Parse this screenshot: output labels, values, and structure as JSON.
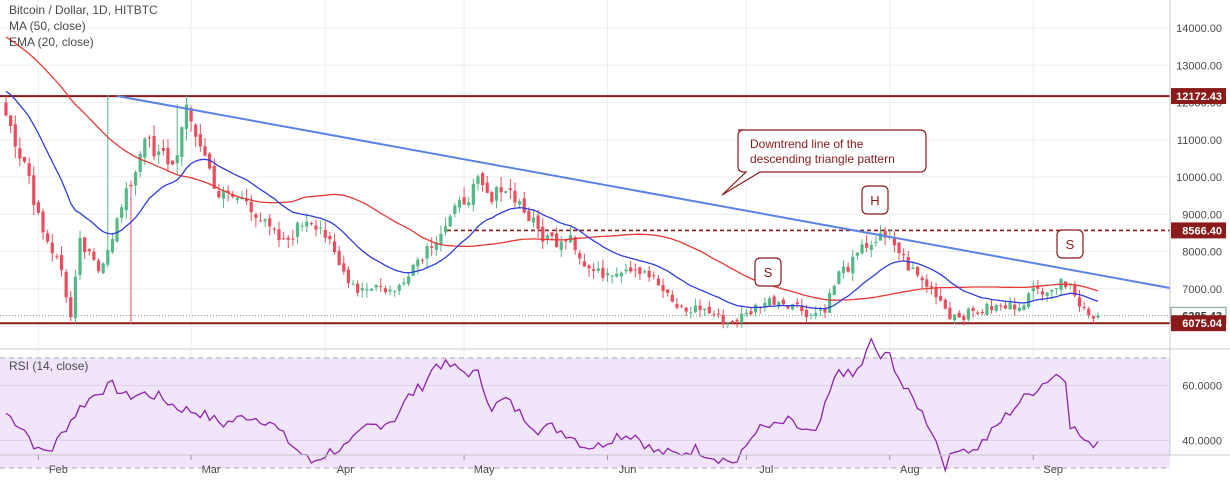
{
  "header": {
    "title": "Bitcoin / Dollar, 1D, HITBTC",
    "indicator_ma": "MA (50, close)",
    "indicator_ema": "EMA (20, close)",
    "rsi_label": "RSI (14, close)"
  },
  "annotations": {
    "callout_line1": "Downtrend line of the",
    "callout_line2": "descending triangle pattern",
    "head": "H",
    "left_shoulder": "S",
    "right_shoulder": "S"
  },
  "colors": {
    "up": "#53b987",
    "down": "#eb4d5c",
    "ma50": "#e53935",
    "ema20": "#2e3ddc",
    "trendline": "#5b82e8",
    "level": "#8b1a1a",
    "rsi": "#8e24aa",
    "rsi_band": "#ecdcfb"
  },
  "chart_data": [
    {
      "type": "candlestick",
      "title": "Bitcoin / Dollar, 1D, HITBTC",
      "x_ticks": [
        "Feb",
        "Mar",
        "Apr",
        "May",
        "Jun",
        "Jul",
        "Aug",
        "Sep"
      ],
      "y_ticks": [
        "6000.00",
        "7000.00",
        "8000.00",
        "9000.00",
        "10000.00",
        "11000.00",
        "12000.00",
        "13000.00",
        "14000.00"
      ],
      "ylim": [
        5700,
        14600
      ],
      "price_labels": [
        "12172.43",
        "8566.40",
        "6285.43",
        "6075.04"
      ],
      "horizontal_levels": [
        12172.43,
        8566.4,
        6075.04
      ],
      "current_price": 6285.43,
      "series": [
        {
          "name": "MA (50, close)",
          "type": "line"
        },
        {
          "name": "EMA (20, close)",
          "type": "line"
        }
      ],
      "close_anchors": [
        [
          0,
          11800
        ],
        [
          4,
          10300
        ],
        [
          8,
          8600
        ],
        [
          12,
          7500
        ],
        [
          14,
          6200
        ],
        [
          16,
          8200
        ],
        [
          20,
          7500
        ],
        [
          24,
          8800
        ],
        [
          28,
          10200
        ],
        [
          30,
          11200
        ],
        [
          32,
          10500
        ],
        [
          34,
          10600
        ],
        [
          36,
          10300
        ],
        [
          39,
          11700
        ],
        [
          42,
          10900
        ],
        [
          46,
          9500
        ],
        [
          52,
          9400
        ],
        [
          56,
          8700
        ],
        [
          60,
          8200
        ],
        [
          65,
          8900
        ],
        [
          68,
          8700
        ],
        [
          72,
          7600
        ],
        [
          76,
          7000
        ],
        [
          80,
          7100
        ],
        [
          84,
          6900
        ],
        [
          87,
          7500
        ],
        [
          91,
          8100
        ],
        [
          95,
          8700
        ],
        [
          99,
          9400
        ],
        [
          102,
          9800
        ],
        [
          105,
          9300
        ],
        [
          107,
          9800
        ],
        [
          110,
          9500
        ],
        [
          113,
          8900
        ],
        [
          116,
          8400
        ],
        [
          119,
          8300
        ],
        [
          122,
          8500
        ],
        [
          125,
          7600
        ],
        [
          128,
          7400
        ],
        [
          131,
          7500
        ],
        [
          135,
          7600
        ],
        [
          138,
          7500
        ],
        [
          141,
          7100
        ],
        [
          144,
          6600
        ],
        [
          147,
          6400
        ],
        [
          150,
          6500
        ],
        [
          153,
          6300
        ],
        [
          156,
          6100
        ],
        [
          160,
          6300
        ],
        [
          163,
          6600
        ],
        [
          166,
          6700
        ],
        [
          170,
          6600
        ],
        [
          174,
          6300
        ],
        [
          177,
          6500
        ],
        [
          180,
          7400
        ],
        [
          183,
          7700
        ],
        [
          186,
          8200
        ],
        [
          189,
          8350
        ],
        [
          192,
          8200
        ],
        [
          195,
          7600
        ],
        [
          198,
          7200
        ],
        [
          201,
          6900
        ],
        [
          204,
          6300
        ],
        [
          207,
          6300
        ],
        [
          210,
          6400
        ],
        [
          213,
          6500
        ],
        [
          216,
          6500
        ],
        [
          219,
          6600
        ],
        [
          222,
          6900
        ],
        [
          225,
          7050
        ],
        [
          228,
          7100
        ],
        [
          230,
          7300
        ],
        [
          232,
          6500
        ],
        [
          234,
          6400
        ],
        [
          235,
          6270
        ],
        [
          236,
          6285
        ]
      ]
    },
    {
      "type": "line",
      "title": "RSI (14, close)",
      "y_ticks": [
        "40.0000",
        "60.0000"
      ],
      "ylim": [
        24,
        78
      ],
      "band": [
        30,
        70
      ],
      "rsi_anchors": [
        [
          0,
          50
        ],
        [
          4,
          44
        ],
        [
          7,
          36
        ],
        [
          10,
          37
        ],
        [
          13,
          45
        ],
        [
          16,
          52
        ],
        [
          20,
          58
        ],
        [
          23,
          60
        ],
        [
          26,
          56
        ],
        [
          30,
          57
        ],
        [
          33,
          56
        ],
        [
          37,
          52
        ],
        [
          42,
          50
        ],
        [
          47,
          46
        ],
        [
          52,
          49
        ],
        [
          57,
          47
        ],
        [
          62,
          38
        ],
        [
          66,
          32
        ],
        [
          70,
          36
        ],
        [
          74,
          38
        ],
        [
          78,
          45
        ],
        [
          81,
          46
        ],
        [
          84,
          48
        ],
        [
          87,
          56
        ],
        [
          90,
          60
        ],
        [
          93,
          68
        ],
        [
          96,
          67
        ],
        [
          99,
          65
        ],
        [
          102,
          64
        ],
        [
          105,
          52
        ],
        [
          108,
          55
        ],
        [
          111,
          50
        ],
        [
          115,
          44
        ],
        [
          118,
          45
        ],
        [
          122,
          42
        ],
        [
          125,
          38
        ],
        [
          128,
          38
        ],
        [
          132,
          42
        ],
        [
          136,
          42
        ],
        [
          140,
          36
        ],
        [
          145,
          35
        ],
        [
          149,
          37
        ],
        [
          153,
          34
        ],
        [
          158,
          32
        ],
        [
          162,
          44
        ],
        [
          166,
          45
        ],
        [
          169,
          47
        ],
        [
          172,
          44
        ],
        [
          175,
          42
        ],
        [
          178,
          57
        ],
        [
          180,
          66
        ],
        [
          183,
          63
        ],
        [
          185,
          68
        ],
        [
          187,
          76
        ],
        [
          189,
          70
        ],
        [
          191,
          71
        ],
        [
          194,
          59
        ],
        [
          197,
          53
        ],
        [
          200,
          44
        ],
        [
          203,
          31
        ],
        [
          206,
          38
        ],
        [
          209,
          36
        ],
        [
          212,
          41
        ],
        [
          215,
          47
        ],
        [
          219,
          54
        ],
        [
          222,
          58
        ],
        [
          225,
          62
        ],
        [
          227,
          64
        ],
        [
          229,
          63
        ],
        [
          230,
          46
        ],
        [
          232,
          42
        ],
        [
          234,
          38
        ],
        [
          236,
          40
        ]
      ]
    }
  ]
}
